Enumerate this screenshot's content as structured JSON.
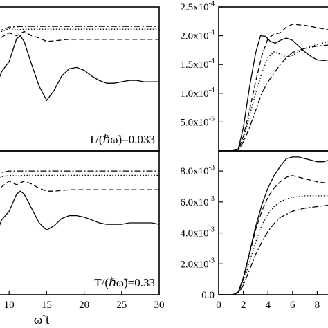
{
  "chart_data": [
    {
      "type": "line",
      "id": "top-left",
      "xlim": [
        8,
        30
      ],
      "annotation": "T/(ℏω̃)=0.033",
      "series": [
        {
          "style": "dashdot",
          "x": [
            8,
            9,
            10,
            12,
            14,
            16,
            20,
            25,
            30
          ],
          "y": [
            0.82,
            0.84,
            0.86,
            0.865,
            0.865,
            0.865,
            0.865,
            0.865,
            0.865
          ]
        },
        {
          "style": "dotted",
          "x": [
            8,
            9,
            10,
            11,
            12,
            14,
            16,
            20,
            25,
            30
          ],
          "y": [
            0.8,
            0.83,
            0.85,
            0.84,
            0.845,
            0.845,
            0.845,
            0.845,
            0.845,
            0.845
          ]
        },
        {
          "style": "dashed",
          "x": [
            8,
            9,
            10,
            11,
            12,
            13,
            14,
            15,
            16,
            18,
            20,
            25,
            30
          ],
          "y": [
            0.76,
            0.79,
            0.82,
            0.8,
            0.83,
            0.8,
            0.785,
            0.76,
            0.765,
            0.775,
            0.775,
            0.775,
            0.775
          ]
        },
        {
          "style": "solid",
          "x": [
            8,
            8.5,
            9,
            10,
            10.5,
            11,
            11.5,
            12,
            13,
            14,
            15,
            16,
            17,
            18,
            19,
            20,
            21,
            22,
            23,
            24,
            25,
            26,
            27,
            28,
            29,
            30
          ],
          "y": [
            0.3,
            0.48,
            0.55,
            0.62,
            0.7,
            0.78,
            0.8,
            0.76,
            0.6,
            0.45,
            0.35,
            0.42,
            0.52,
            0.57,
            0.58,
            0.56,
            0.52,
            0.49,
            0.47,
            0.47,
            0.48,
            0.49,
            0.49,
            0.48,
            0.48,
            0.48
          ]
        }
      ]
    },
    {
      "type": "line",
      "id": "bottom-left",
      "xlim": [
        8,
        30
      ],
      "xticks": [
        "10",
        "15",
        "20",
        "25",
        "30"
      ],
      "xlabel": "ω̃ t",
      "annotation": "T/(ℏω̃)=0.33",
      "series": [
        {
          "style": "dashdot",
          "x": [
            8,
            9,
            10,
            12,
            14,
            16,
            20,
            25,
            30
          ],
          "y": [
            0.83,
            0.85,
            0.86,
            0.86,
            0.86,
            0.86,
            0.86,
            0.86,
            0.86
          ]
        },
        {
          "style": "dotted",
          "x": [
            8,
            9,
            10,
            11,
            12,
            14,
            16,
            20,
            25,
            30
          ],
          "y": [
            0.8,
            0.82,
            0.83,
            0.825,
            0.83,
            0.83,
            0.83,
            0.83,
            0.83,
            0.83
          ]
        },
        {
          "style": "dashed",
          "x": [
            8,
            9,
            10,
            11,
            12,
            13,
            14,
            15,
            16,
            18,
            20,
            25,
            30
          ],
          "y": [
            0.72,
            0.75,
            0.79,
            0.765,
            0.79,
            0.77,
            0.74,
            0.72,
            0.72,
            0.73,
            0.73,
            0.73,
            0.73
          ]
        },
        {
          "style": "solid",
          "x": [
            8,
            8.5,
            9,
            10,
            10.5,
            11,
            11.5,
            12,
            13,
            14,
            15,
            16,
            17,
            18,
            19,
            20,
            21,
            22,
            23,
            24,
            25,
            26,
            27,
            28,
            29,
            30
          ],
          "y": [
            0.35,
            0.45,
            0.52,
            0.58,
            0.64,
            0.7,
            0.72,
            0.7,
            0.6,
            0.5,
            0.45,
            0.48,
            0.53,
            0.55,
            0.55,
            0.54,
            0.52,
            0.5,
            0.49,
            0.49,
            0.49,
            0.5,
            0.5,
            0.5,
            0.5,
            0.49
          ]
        }
      ]
    },
    {
      "type": "line",
      "id": "top-right",
      "xlim": [
        0,
        10
      ],
      "ylim": [
        0,
        0.00025
      ],
      "yticks": [
        {
          "v": 5e-05,
          "m": "5.0",
          "e": "-5"
        },
        {
          "v": 0.0001,
          "m": "1.0",
          "e": "-4"
        },
        {
          "v": 0.00015,
          "m": "1.5",
          "e": "-4"
        },
        {
          "v": 0.0002,
          "m": "2.0",
          "e": "-4"
        },
        {
          "v": 0.00025,
          "m": "2.5",
          "e": "-4"
        }
      ],
      "series": [
        {
          "style": "solid",
          "x": [
            0,
            1,
            1.3,
            1.6,
            2,
            2.5,
            3,
            3.4,
            3.8,
            4.2,
            4.6,
            5,
            5.5,
            6,
            6.5,
            7,
            7.5,
            8,
            8.5,
            9,
            9.5,
            10
          ],
          "y": [
            0,
            0,
            1e-06,
            4e-06,
            4e-05,
            0.00011,
            0.00017,
            0.0002,
            0.000199,
            0.00019,
            0.000187,
            0.000192,
            0.000196,
            0.000192,
            0.000182,
            0.000172,
            0.000164,
            0.000158,
            0.000157,
            0.000158,
            0.00016,
            0.000163
          ]
        },
        {
          "style": "dashed",
          "x": [
            0,
            1,
            1.3,
            1.6,
            2,
            2.5,
            3,
            3.5,
            4,
            4.5,
            5,
            5.5,
            6,
            7,
            8,
            9,
            10
          ],
          "y": [
            0,
            0,
            1e-06,
            3e-06,
            2.5e-05,
            7e-05,
            0.00012,
            0.000165,
            0.000195,
            0.000203,
            0.000205,
            0.000215,
            0.00022,
            0.000218,
            0.000214,
            0.00021,
            0.000205
          ]
        },
        {
          "style": "dotted",
          "x": [
            0,
            1,
            1.3,
            1.6,
            2,
            2.5,
            3,
            3.5,
            4,
            4.5,
            5,
            5.5,
            6,
            6.5,
            7,
            8,
            9,
            10
          ],
          "y": [
            0,
            0,
            1e-06,
            2e-06,
            2e-05,
            6e-05,
            0.0001,
            0.000135,
            0.000162,
            0.000172,
            0.000168,
            0.000163,
            0.000166,
            0.000172,
            0.000178,
            0.000185,
            0.00019,
            0.00019
          ]
        },
        {
          "style": "dashdot",
          "x": [
            0,
            1,
            1.3,
            1.6,
            2,
            2.5,
            3,
            3.5,
            4,
            4.5,
            5,
            5.5,
            6,
            7,
            8,
            9,
            10
          ],
          "y": [
            0,
            0,
            1e-06,
            2e-06,
            1.5e-05,
            4e-05,
            7e-05,
            0.0001,
            0.00012,
            0.000135,
            0.00015,
            0.000162,
            0.000171,
            0.000178,
            0.000182,
            0.000184,
            0.000185
          ]
        }
      ]
    },
    {
      "type": "line",
      "id": "bottom-right",
      "xlim": [
        0,
        10
      ],
      "ylim": [
        0,
        0.0093
      ],
      "xticks": [
        "0",
        "2",
        "4",
        "6",
        "8"
      ],
      "yticks": [
        {
          "v": 0,
          "m": "0.0",
          "e": ""
        },
        {
          "v": 0.002,
          "m": "2.0",
          "e": "-3"
        },
        {
          "v": 0.004,
          "m": "4.0",
          "e": "-3"
        },
        {
          "v": 0.006,
          "m": "6.0",
          "e": "-3"
        },
        {
          "v": 0.008,
          "m": "8.0",
          "e": "-3"
        }
      ],
      "series": [
        {
          "style": "solid",
          "x": [
            0,
            1,
            1.3,
            1.6,
            2,
            2.5,
            3,
            3.5,
            4,
            4.5,
            5,
            5.5,
            6,
            6.5,
            7,
            7.5,
            8,
            8.5,
            9,
            9.5,
            10
          ],
          "y": [
            0,
            0,
            5e-05,
            0.0002,
            0.0011,
            0.0027,
            0.0044,
            0.0058,
            0.0069,
            0.0077,
            0.0083,
            0.0088,
            0.0089,
            0.0089,
            0.0088,
            0.0087,
            0.0086,
            0.0086,
            0.0087,
            0.0088,
            0.0088
          ]
        },
        {
          "style": "dashed",
          "x": [
            0,
            1,
            1.3,
            1.6,
            2,
            2.5,
            3,
            3.5,
            4,
            4.5,
            5,
            5.5,
            6,
            6.5,
            7,
            8,
            9,
            10
          ],
          "y": [
            0,
            0,
            5e-05,
            0.00018,
            0.001,
            0.0026,
            0.0042,
            0.0054,
            0.0063,
            0.0069,
            0.0073,
            0.0076,
            0.0077,
            0.0076,
            0.0075,
            0.0073,
            0.0072,
            0.0072
          ]
        },
        {
          "style": "dotted",
          "x": [
            0,
            1,
            1.3,
            1.6,
            2,
            2.5,
            3,
            3.5,
            4,
            4.5,
            5,
            5.5,
            6,
            7,
            8,
            9,
            10
          ],
          "y": [
            0,
            0,
            4e-05,
            0.00015,
            0.0008,
            0.0021,
            0.0034,
            0.0045,
            0.0052,
            0.0057,
            0.006,
            0.0062,
            0.0063,
            0.0064,
            0.0064,
            0.0064,
            0.0064
          ]
        },
        {
          "style": "dashdot",
          "x": [
            0,
            1,
            1.3,
            1.6,
            2,
            2.5,
            3,
            3.5,
            4,
            4.5,
            5,
            5.5,
            6,
            7,
            8,
            9,
            10
          ],
          "y": [
            0,
            0,
            3e-05,
            0.00012,
            0.0006,
            0.0016,
            0.0026,
            0.0034,
            0.0041,
            0.0046,
            0.005,
            0.0052,
            0.0054,
            0.0056,
            0.0057,
            0.0058,
            0.0058
          ]
        }
      ]
    }
  ],
  "colors": {
    "ink": "#000000",
    "background": "#ffffff"
  }
}
